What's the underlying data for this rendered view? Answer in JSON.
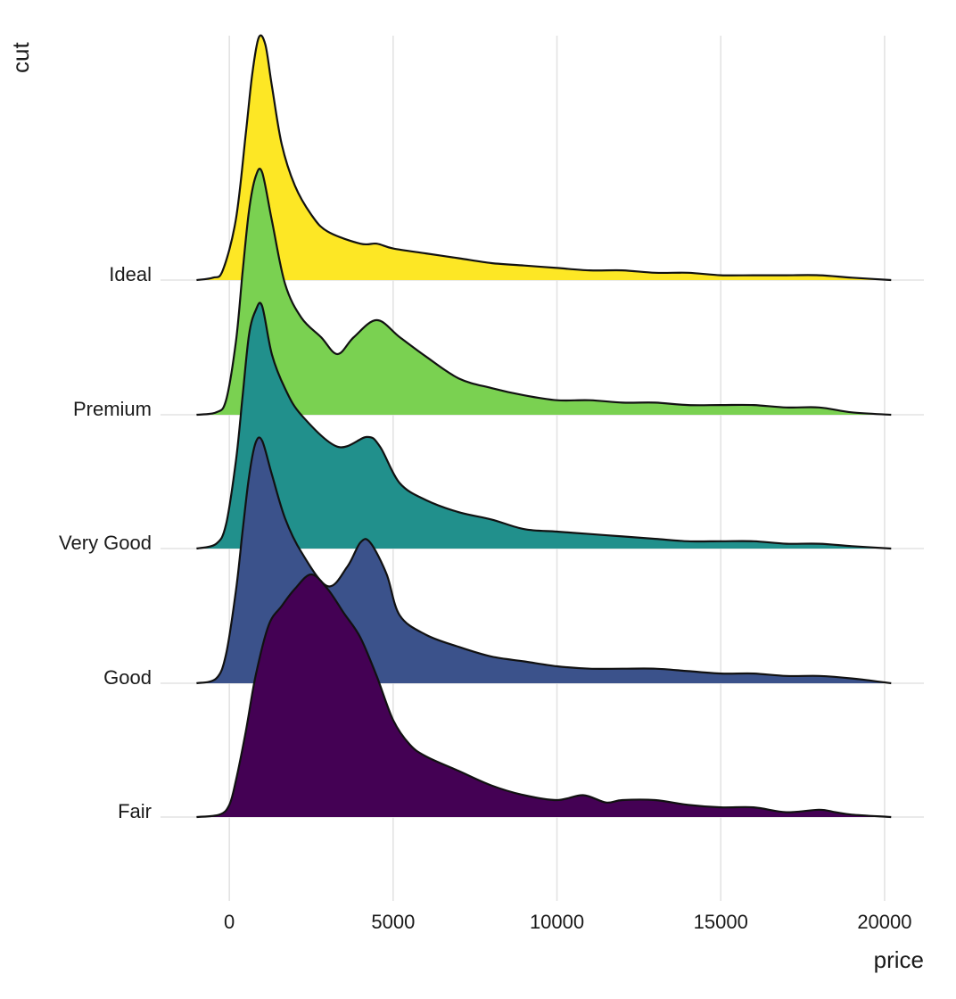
{
  "chart_data": {
    "type": "ridgeline",
    "xlabel": "price",
    "ylabel": "cut",
    "xlim": [
      -2100,
      21200
    ],
    "x_ticks": [
      0,
      5000,
      10000,
      15000,
      20000
    ],
    "x_tick_labels": [
      "0",
      "5000",
      "10000",
      "15000",
      "20000"
    ],
    "grid": "vertical",
    "categories": [
      "Fair",
      "Good",
      "Very Good",
      "Premium",
      "Ideal"
    ],
    "series": [
      {
        "name": "Fair",
        "color": "#440154",
        "x": [
          -1000,
          -300,
          0,
          200,
          500,
          800,
          1200,
          1600,
          2000,
          2500,
          3000,
          3500,
          4000,
          4500,
          5000,
          5500,
          6000,
          7000,
          8000,
          9000,
          10000,
          10800,
          11500,
          12000,
          13000,
          14000,
          15000,
          16000,
          17000,
          18000,
          18500,
          19000,
          20200
        ],
        "density": [
          0,
          0.01,
          0.05,
          0.15,
          0.35,
          0.58,
          0.79,
          0.87,
          0.94,
          1.0,
          0.94,
          0.84,
          0.74,
          0.58,
          0.4,
          0.3,
          0.25,
          0.19,
          0.13,
          0.09,
          0.07,
          0.09,
          0.06,
          0.07,
          0.07,
          0.05,
          0.04,
          0.04,
          0.02,
          0.03,
          0.02,
          0.01,
          0
        ]
      },
      {
        "name": "Good",
        "color": "#3b528b",
        "x": [
          -1000,
          -400,
          -100,
          200,
          400,
          600,
          800,
          1000,
          1300,
          1700,
          2200,
          3000,
          3600,
          4000,
          4300,
          4800,
          5200,
          6000,
          7000,
          8000,
          9000,
          10000,
          11000,
          12000,
          13000,
          14000,
          15000,
          16000,
          17000,
          18000,
          19000,
          20200
        ],
        "density": [
          0,
          0.02,
          0.12,
          0.38,
          0.62,
          0.85,
          0.99,
          1.0,
          0.86,
          0.68,
          0.54,
          0.4,
          0.48,
          0.58,
          0.58,
          0.45,
          0.28,
          0.2,
          0.15,
          0.11,
          0.09,
          0.07,
          0.06,
          0.06,
          0.06,
          0.05,
          0.04,
          0.04,
          0.03,
          0.03,
          0.02,
          0
        ]
      },
      {
        "name": "Very Good",
        "color": "#21908c",
        "x": [
          -1000,
          -400,
          -100,
          200,
          400,
          600,
          800,
          1000,
          1300,
          1700,
          2200,
          3300,
          4200,
          4600,
          5200,
          6000,
          7000,
          8000,
          9000,
          10000,
          11000,
          12000,
          13000,
          14000,
          15000,
          16000,
          17000,
          18000,
          19000,
          20200
        ],
        "density": [
          0,
          0.02,
          0.1,
          0.36,
          0.62,
          0.88,
          0.98,
          1.0,
          0.8,
          0.66,
          0.55,
          0.42,
          0.46,
          0.42,
          0.27,
          0.2,
          0.15,
          0.12,
          0.08,
          0.07,
          0.06,
          0.05,
          0.04,
          0.03,
          0.03,
          0.03,
          0.02,
          0.02,
          0.01,
          0
        ]
      },
      {
        "name": "Premium",
        "color": "#7ad151",
        "x": [
          -1000,
          -400,
          -100,
          200,
          400,
          600,
          800,
          1000,
          1300,
          1700,
          2200,
          2800,
          3300,
          3800,
          4500,
          5200,
          6000,
          7000,
          8000,
          9000,
          10000,
          11000,
          12000,
          13000,
          14000,
          15000,
          16000,
          17000,
          18000,
          19000,
          20200
        ],
        "density": [
          0,
          0.01,
          0.06,
          0.3,
          0.58,
          0.84,
          0.98,
          1.0,
          0.8,
          0.54,
          0.4,
          0.32,
          0.25,
          0.32,
          0.39,
          0.32,
          0.24,
          0.15,
          0.11,
          0.08,
          0.06,
          0.06,
          0.05,
          0.05,
          0.04,
          0.04,
          0.04,
          0.03,
          0.03,
          0.01,
          0
        ]
      },
      {
        "name": "Ideal",
        "color": "#fde725",
        "x": [
          -1000,
          -500,
          -200,
          200,
          500,
          700,
          900,
          1100,
          1300,
          1600,
          2000,
          2500,
          3000,
          4000,
          4500,
          5000,
          6000,
          7000,
          8000,
          9000,
          10000,
          11000,
          12000,
          13000,
          14000,
          15000,
          16000,
          17000,
          18000,
          19000,
          20200
        ],
        "density": [
          0,
          0.01,
          0.04,
          0.25,
          0.6,
          0.85,
          1.0,
          0.97,
          0.8,
          0.56,
          0.39,
          0.27,
          0.2,
          0.15,
          0.15,
          0.13,
          0.11,
          0.09,
          0.07,
          0.06,
          0.05,
          0.04,
          0.04,
          0.03,
          0.03,
          0.02,
          0.02,
          0.02,
          0.02,
          0.01,
          0
        ]
      }
    ]
  }
}
